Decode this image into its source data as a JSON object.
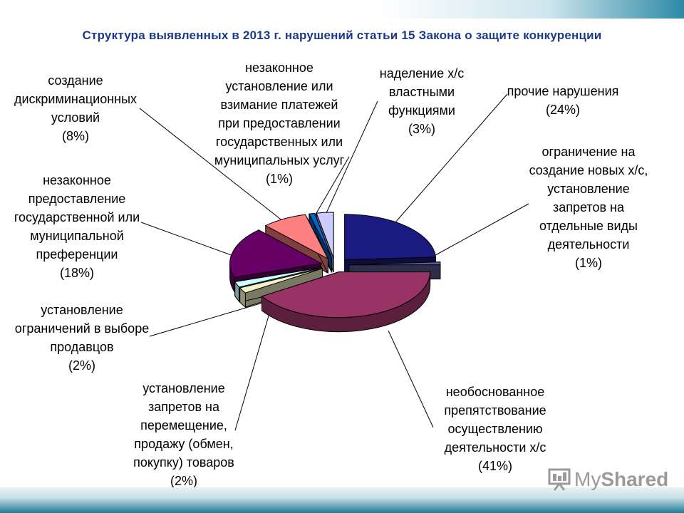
{
  "title": "Структура выявленных в 2013 г. нарушений статьи 15 Закона о защите конкуренции",
  "logo": {
    "text_a": "My",
    "text_b": "Shared"
  },
  "chart_data": {
    "type": "pie",
    "title": "Структура выявленных в 2013 г. нарушений статьи 15 Закона о защите конкуренции",
    "legend": "none",
    "slices": [
      {
        "key": "prochie",
        "name": "прочие нарушения",
        "value": 24,
        "value_label": "(24%)",
        "color": "#1a1a80",
        "lines": [
          "прочие нарушения"
        ]
      },
      {
        "key": "ogranichenie_novyh",
        "name": "ограничение на создание новых х/с, установление запретов на отдельные виды деятельности",
        "value": 1,
        "value_label": "(1%)",
        "color": "#5b5b95",
        "lines": [
          "ограничение на",
          "создание новых х/с,",
          "установление",
          "запретов на",
          "отдельные виды",
          "деятельности"
        ]
      },
      {
        "key": "neobosnovannoe",
        "name": "необоснованное препятствование осуществлению деятельности х/с",
        "value": 41,
        "value_label": "(41%)",
        "color": "#993366",
        "lines": [
          "необоснованное",
          "препятствование",
          "осуществлению",
          "деятельности х/с"
        ]
      },
      {
        "key": "zaprety_tovary",
        "name": "установление запретов на перемещение, продажу (обмен, покупку) товаров",
        "value": 2,
        "value_label": "(2%)",
        "color": "#f2f2c8",
        "lines": [
          "установление",
          "запретов на",
          "перемещение,",
          "продажу (обмен,",
          "покупку) товаров"
        ]
      },
      {
        "key": "vybor_prodavcov",
        "name": "установление ограничений в выборе продавцов",
        "value": 2,
        "value_label": "(2%)",
        "color": "#ccffff",
        "lines": [
          "установление",
          "ограничений в выборе",
          "продавцов"
        ]
      },
      {
        "key": "preferencii",
        "name": "незаконное предоставление государственной или муниципальной преференции",
        "value": 18,
        "value_label": "(18%)",
        "color": "#660066",
        "lines": [
          "незаконное",
          "предоставление",
          "государственной или",
          "муниципальной",
          "преференции"
        ]
      },
      {
        "key": "diskriminaciya",
        "name": "создание дискриминационных условий",
        "value": 8,
        "value_label": "(8%)",
        "color": "#ff8080",
        "lines": [
          "создание",
          "дискриминационных",
          "условий"
        ]
      },
      {
        "key": "platezhi",
        "name": "незаконное установление или взимание платежей при предоставлении государственных или муниципальных услуг",
        "value": 1,
        "value_label": "(1%)",
        "color": "#0066cc",
        "lines": [
          "незаконное",
          "установление или",
          "взимание платежей",
          "при предоставлении",
          "государственных или",
          "муниципальных услуг"
        ]
      },
      {
        "key": "nadelenie",
        "name": "наделение х/с властными функциями",
        "value": 3,
        "value_label": "(3%)",
        "color": "#ccccff",
        "lines": [
          "наделение х/с",
          "властными",
          "функциями"
        ]
      }
    ]
  }
}
